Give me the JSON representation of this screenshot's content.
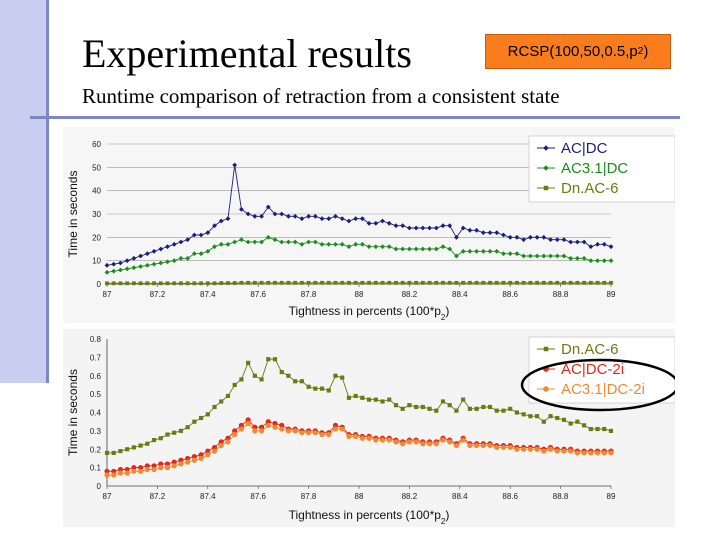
{
  "slide": {
    "title": "Experimental results",
    "badge_prefix": "RCSP(100,50,0.5,p",
    "badge_sub": "2",
    "badge_suffix": ")",
    "subtitle": "Runtime comparison of retraction from a consistent state",
    "colors": {
      "sidebar": "#c9cdf0",
      "rule": "#7f86c6",
      "badge": "#f97d1c",
      "highlight_ellipse": "#000000"
    }
  },
  "chart_data": [
    {
      "type": "line",
      "ylabel": "Time in seconds",
      "xlabel": "Tightness in percents (100*p",
      "xlabel_sub": "2",
      "xlabel_suffix": ")",
      "xlim": [
        87,
        89
      ],
      "ylim": [
        0,
        60
      ],
      "xticks": [
        "87",
        "87.2",
        "87.4",
        "87.6",
        "87.8",
        "88",
        "88.2",
        "88.4",
        "88.6",
        "88.8",
        "89"
      ],
      "yticks": [
        "0",
        "10",
        "20",
        "30",
        "40",
        "50",
        "60"
      ],
      "grid": true,
      "legend_position": "top-right",
      "series": [
        {
          "name": "AC|DC",
          "color": "#1c1f7a",
          "marker": "diamond",
          "values": [
            8,
            8.5,
            9,
            10,
            11,
            12,
            13,
            14,
            15,
            16,
            17,
            18,
            19,
            21,
            21,
            22,
            25,
            27,
            28,
            51,
            32,
            30,
            29,
            29,
            33,
            30,
            30,
            29,
            29,
            28,
            29,
            29,
            28,
            28,
            29,
            28,
            27,
            28,
            28,
            26,
            26,
            27,
            26,
            25,
            25,
            24,
            24,
            24,
            24,
            24,
            25,
            25,
            20,
            24,
            23,
            23,
            22,
            22,
            22,
            21,
            20,
            20,
            19,
            20,
            20,
            20,
            19,
            19,
            19,
            18,
            18,
            18,
            16,
            17,
            17,
            16
          ]
        },
        {
          "name": "AC3.1|DC",
          "color": "#1e8c1e",
          "marker": "diamond",
          "values": [
            5,
            5.5,
            6,
            6.5,
            7,
            7.5,
            8,
            8.5,
            9,
            9.5,
            10,
            11,
            11,
            13,
            13,
            14,
            16,
            17,
            17,
            18,
            19,
            18,
            18,
            18,
            20,
            19,
            18,
            18,
            18,
            17,
            18,
            18,
            17,
            17,
            17,
            17,
            16,
            17,
            17,
            16,
            16,
            16,
            16,
            15,
            15,
            15,
            15,
            15,
            15,
            15,
            16,
            15,
            12,
            14,
            14,
            14,
            14,
            14,
            14,
            13,
            13,
            13,
            12,
            12,
            12,
            12,
            12,
            12,
            12,
            11,
            11,
            11,
            10,
            10,
            10,
            10
          ]
        },
        {
          "name": "Dn.AC-6",
          "color": "#6b7a12",
          "marker": "square",
          "values": [
            0.3,
            0.3,
            0.3,
            0.3,
            0.3,
            0.3,
            0.3,
            0.3,
            0.3,
            0.3,
            0.3,
            0.3,
            0.3,
            0.3,
            0.3,
            0.3,
            0.3,
            0.4,
            0.4,
            0.4,
            0.5,
            0.5,
            0.5,
            0.5,
            0.5,
            0.5,
            0.5,
            0.5,
            0.5,
            0.5,
            0.5,
            0.5,
            0.5,
            0.5,
            0.5,
            0.5,
            0.5,
            0.5,
            0.5,
            0.5,
            0.5,
            0.5,
            0.5,
            0.5,
            0.5,
            0.5,
            0.5,
            0.5,
            0.5,
            0.5,
            0.5,
            0.5,
            0.5,
            0.5,
            0.5,
            0.5,
            0.5,
            0.5,
            0.5,
            0.5,
            0.5,
            0.5,
            0.5,
            0.5,
            0.5,
            0.5,
            0.5,
            0.5,
            0.5,
            0.5,
            0.5,
            0.5,
            0.5,
            0.5,
            0.5,
            0.5
          ]
        }
      ]
    },
    {
      "type": "line",
      "ylabel": "Time in seconds",
      "xlabel": "Tightness in percents (100*p",
      "xlabel_sub": "2",
      "xlabel_suffix": ")",
      "xlim": [
        87,
        89
      ],
      "ylim": [
        0,
        0.8
      ],
      "xticks": [
        "87",
        "87.2",
        "87.4",
        "87.6",
        "87.8",
        "88",
        "88.2",
        "88.4",
        "88.6",
        "88.8",
        "89"
      ],
      "yticks": [
        "0",
        "0.1",
        "0.2",
        "0.3",
        "0.4",
        "0.5",
        "0.6",
        "0.7",
        "0.8"
      ],
      "grid": false,
      "legend_position": "top-right",
      "series": [
        {
          "name": "Dn.AC-6",
          "color": "#6b7a12",
          "marker": "square",
          "values": [
            0.18,
            0.18,
            0.19,
            0.2,
            0.21,
            0.22,
            0.23,
            0.25,
            0.26,
            0.28,
            0.29,
            0.3,
            0.32,
            0.35,
            0.37,
            0.39,
            0.43,
            0.46,
            0.49,
            0.55,
            0.58,
            0.67,
            0.6,
            0.58,
            0.69,
            0.69,
            0.62,
            0.6,
            0.57,
            0.57,
            0.54,
            0.53,
            0.53,
            0.52,
            0.6,
            0.59,
            0.48,
            0.49,
            0.48,
            0.47,
            0.47,
            0.46,
            0.47,
            0.44,
            0.42,
            0.44,
            0.43,
            0.43,
            0.42,
            0.41,
            0.46,
            0.44,
            0.41,
            0.47,
            0.42,
            0.42,
            0.43,
            0.43,
            0.41,
            0.41,
            0.42,
            0.4,
            0.39,
            0.38,
            0.38,
            0.35,
            0.38,
            0.37,
            0.36,
            0.34,
            0.35,
            0.33,
            0.31,
            0.31,
            0.31,
            0.3
          ]
        },
        {
          "name": "AC|DC-2i",
          "color": "#e02a1c",
          "marker": "circle",
          "values": [
            0.08,
            0.08,
            0.09,
            0.09,
            0.1,
            0.1,
            0.11,
            0.11,
            0.12,
            0.12,
            0.13,
            0.14,
            0.15,
            0.16,
            0.17,
            0.19,
            0.21,
            0.24,
            0.26,
            0.3,
            0.33,
            0.36,
            0.32,
            0.32,
            0.35,
            0.34,
            0.33,
            0.31,
            0.31,
            0.3,
            0.3,
            0.3,
            0.29,
            0.29,
            0.33,
            0.32,
            0.28,
            0.28,
            0.27,
            0.27,
            0.26,
            0.26,
            0.26,
            0.25,
            0.24,
            0.25,
            0.25,
            0.24,
            0.24,
            0.24,
            0.26,
            0.25,
            0.23,
            0.26,
            0.23,
            0.23,
            0.23,
            0.23,
            0.22,
            0.22,
            0.22,
            0.21,
            0.21,
            0.21,
            0.21,
            0.2,
            0.21,
            0.2,
            0.2,
            0.2,
            0.19,
            0.19,
            0.19,
            0.19,
            0.19,
            0.19
          ]
        },
        {
          "name": "AC3.1|DC-2i",
          "color": "#f08a30",
          "marker": "circle",
          "values": [
            0.06,
            0.06,
            0.07,
            0.07,
            0.08,
            0.08,
            0.09,
            0.09,
            0.1,
            0.1,
            0.11,
            0.12,
            0.13,
            0.14,
            0.15,
            0.17,
            0.19,
            0.22,
            0.24,
            0.28,
            0.31,
            0.34,
            0.3,
            0.3,
            0.33,
            0.32,
            0.31,
            0.3,
            0.3,
            0.29,
            0.29,
            0.29,
            0.28,
            0.28,
            0.31,
            0.31,
            0.27,
            0.27,
            0.26,
            0.26,
            0.25,
            0.25,
            0.25,
            0.24,
            0.23,
            0.24,
            0.24,
            0.23,
            0.23,
            0.23,
            0.25,
            0.24,
            0.22,
            0.25,
            0.22,
            0.22,
            0.22,
            0.22,
            0.21,
            0.21,
            0.21,
            0.2,
            0.2,
            0.2,
            0.2,
            0.19,
            0.2,
            0.19,
            0.19,
            0.19,
            0.18,
            0.18,
            0.18,
            0.18,
            0.18,
            0.18
          ]
        }
      ]
    }
  ]
}
